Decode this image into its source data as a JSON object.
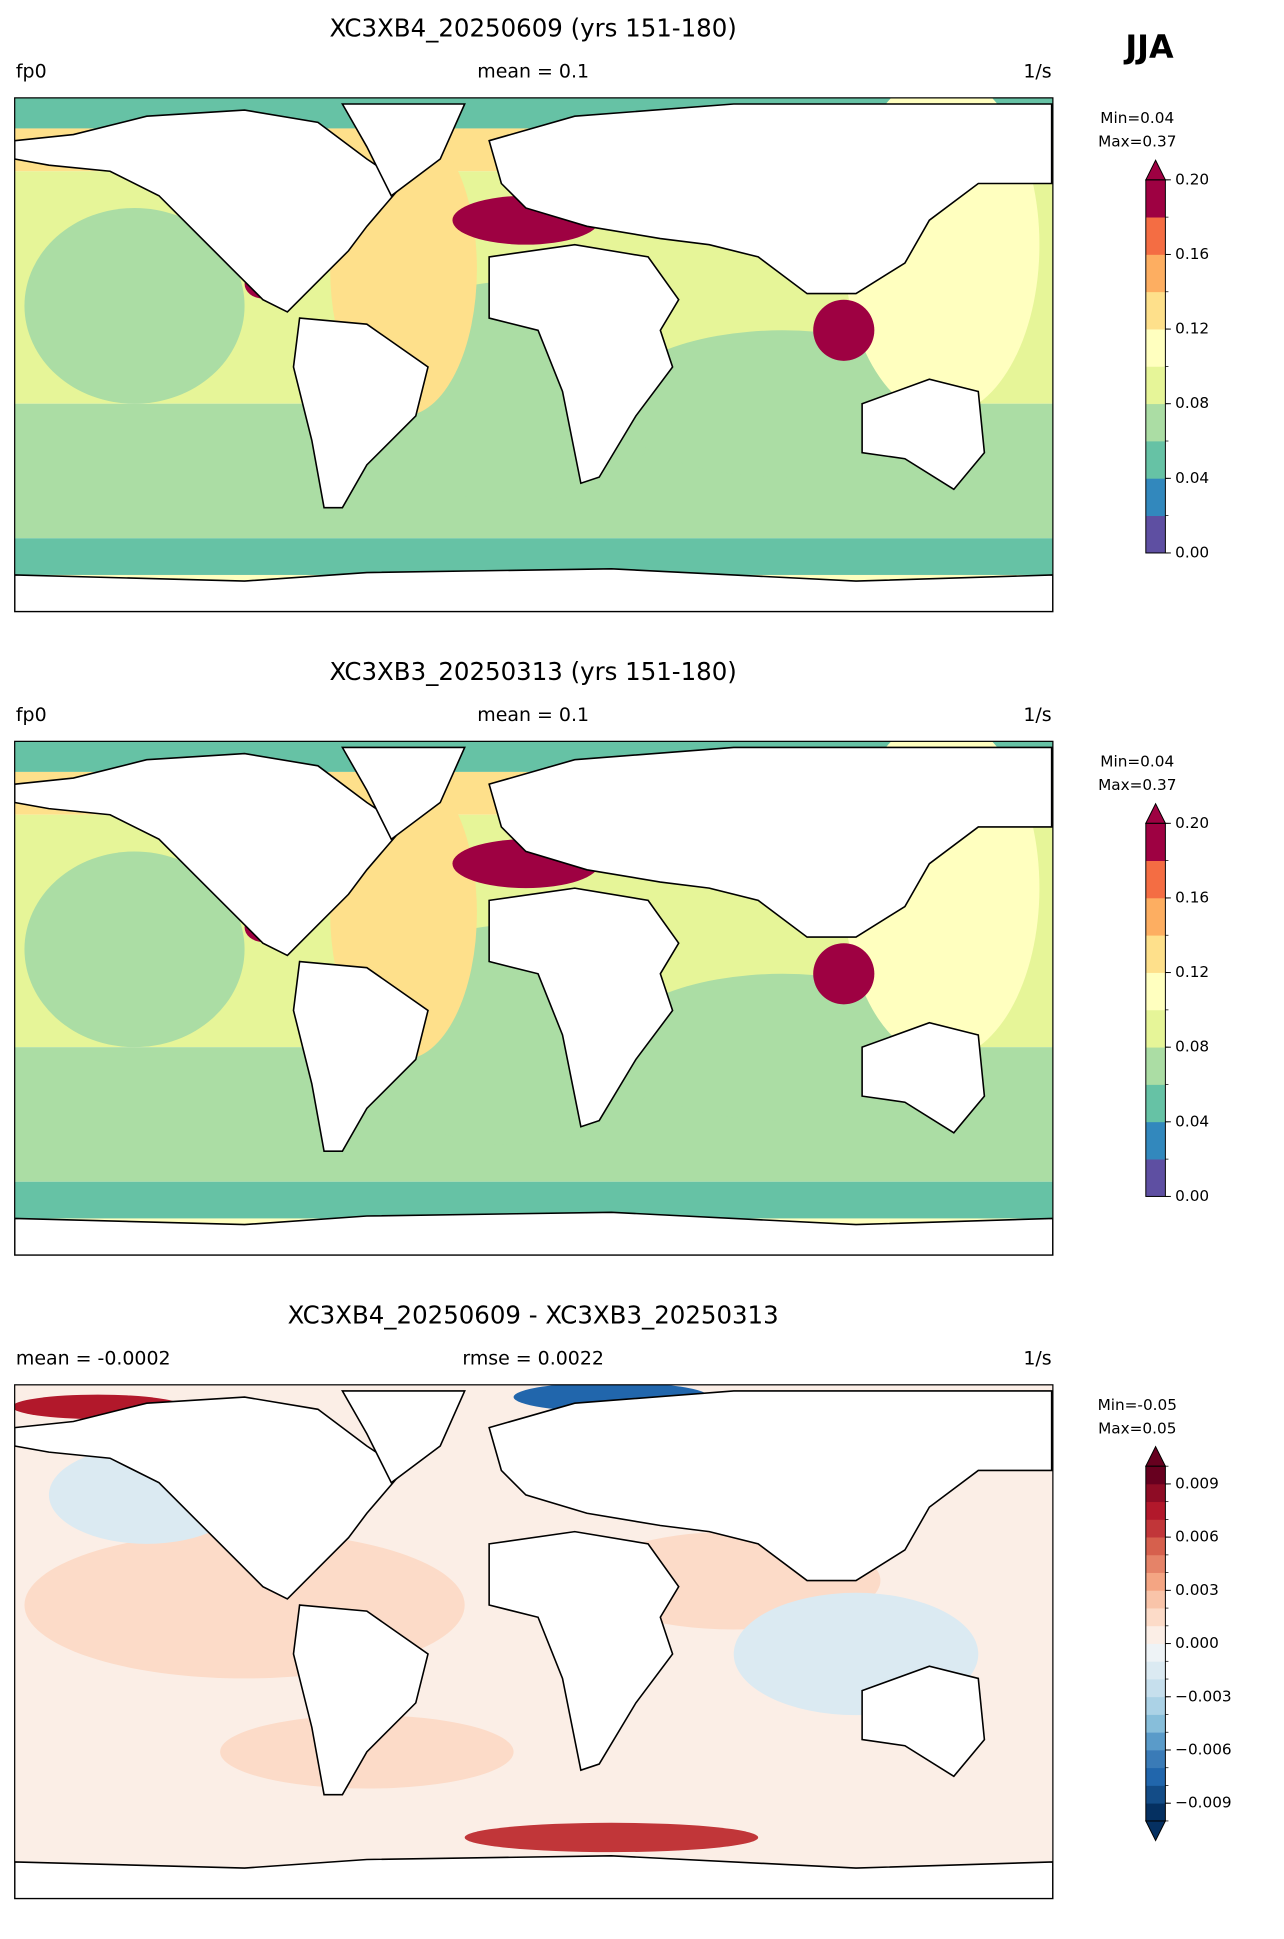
{
  "label": "JJA",
  "panels": [
    {
      "title": "XC3XB4_20250609 (yrs 151-180)",
      "left": "fp0",
      "center": "mean = 0.1",
      "right": "1/s",
      "stats": [
        "Min=0.04",
        "Max=0.37"
      ],
      "colorbar": {
        "levels": [
          0,
          0.02,
          0.04,
          0.06,
          0.08,
          0.1,
          0.12,
          0.14,
          0.16,
          0.18,
          0.2
        ],
        "colors": [
          "#5e4fa2",
          "#3288bd",
          "#66c2a5",
          "#abdda4",
          "#e6f598",
          "#ffffbf",
          "#fee08b",
          "#fdae61",
          "#f46d43",
          "#9e0142"
        ],
        "ticks": [
          {
            "value": 0,
            "label": "0.00"
          },
          {
            "value": 0.04,
            "label": "0.04"
          },
          {
            "value": 0.08,
            "label": "0.08"
          },
          {
            "value": 0.12,
            "label": "0.12"
          },
          {
            "value": 0.16,
            "label": "0.16"
          },
          {
            "value": 0.2,
            "label": "0.20"
          }
        ]
      }
    },
    {
      "title": "XC3XB3_20250313 (yrs 151-180)",
      "left": "fp0",
      "center": "mean = 0.1",
      "right": "1/s",
      "stats": [
        "Min=0.04",
        "Max=0.37"
      ],
      "colorbar": {
        "levels": [
          0,
          0.02,
          0.04,
          0.06,
          0.08,
          0.1,
          0.12,
          0.14,
          0.16,
          0.18,
          0.2
        ],
        "colors": [
          "#5e4fa2",
          "#3288bd",
          "#66c2a5",
          "#abdda4",
          "#e6f598",
          "#ffffbf",
          "#fee08b",
          "#fdae61",
          "#f46d43",
          "#9e0142"
        ],
        "ticks": [
          {
            "value": 0,
            "label": "0.00"
          },
          {
            "value": 0.04,
            "label": "0.04"
          },
          {
            "value": 0.08,
            "label": "0.08"
          },
          {
            "value": 0.12,
            "label": "0.12"
          },
          {
            "value": 0.16,
            "label": "0.16"
          },
          {
            "value": 0.2,
            "label": "0.20"
          }
        ]
      }
    },
    {
      "title": "XC3XB4_20250609 - XC3XB3_20250313",
      "left": "mean = -0.0002",
      "center": "rmse = 0.0022",
      "right": "1/s",
      "stats": [
        "Min=-0.05",
        "Max=0.05"
      ],
      "colorbar": {
        "levels": [
          -0.01,
          -0.009,
          -0.008,
          -0.007,
          -0.006,
          -0.005,
          -0.004,
          -0.003,
          -0.002,
          -0.001,
          0,
          0.001,
          0.002,
          0.003,
          0.004,
          0.005,
          0.006,
          0.007,
          0.008,
          0.009,
          0.01
        ],
        "colors": [
          "#053061",
          "#134c87",
          "#2166ac",
          "#3a7bb7",
          "#5a9bc9",
          "#87beda",
          "#abd2e6",
          "#c6dfed",
          "#dbeaf2",
          "#eef3f6",
          "#fbeee6",
          "#fcdbc8",
          "#f9c4a9",
          "#f4a583",
          "#e58368",
          "#d6604d",
          "#c13639",
          "#b2182b",
          "#8e0c25",
          "#67001f"
        ],
        "ticks": [
          {
            "value": -0.009,
            "label": "−0.009"
          },
          {
            "value": -0.006,
            "label": "−0.006"
          },
          {
            "value": -0.003,
            "label": "−0.003"
          },
          {
            "value": 0,
            "label": "0.000"
          },
          {
            "value": 0.003,
            "label": "0.003"
          },
          {
            "value": 0.006,
            "label": "0.006"
          },
          {
            "value": 0.009,
            "label": "0.009"
          }
        ]
      }
    }
  ]
}
